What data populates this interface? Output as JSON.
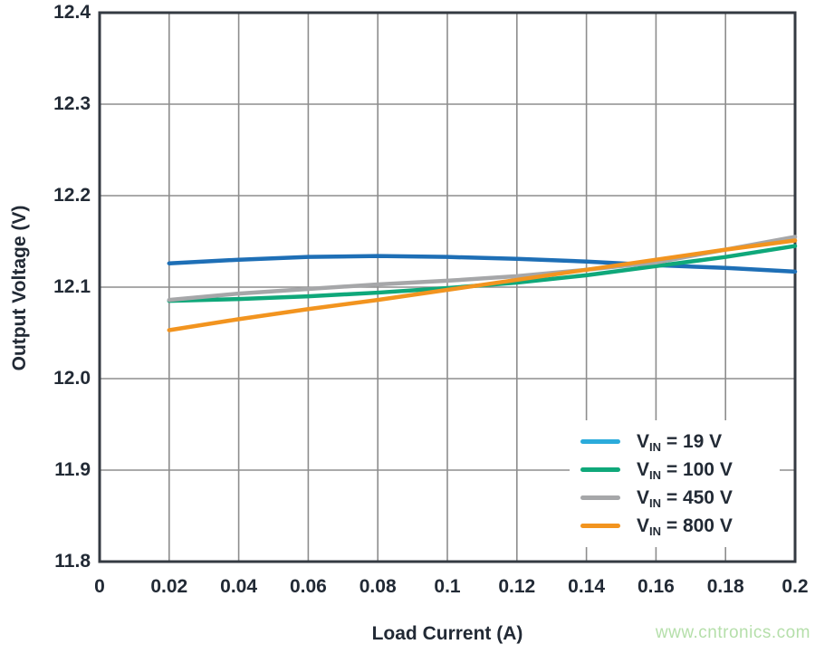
{
  "watermark": {
    "text": "www.cntronics.com",
    "color": "#b5dfaa"
  },
  "colors": {
    "text": "#222a35",
    "grid": "#8d8d8d",
    "frame": "#343a42",
    "background": "#ffffff"
  },
  "chart_data": {
    "type": "line",
    "title": "",
    "xlabel": "Load Current (A)",
    "ylabel": "Output Voltage (V)",
    "xlim": [
      0,
      0.2
    ],
    "ylim": [
      11.8,
      12.4
    ],
    "grid": true,
    "legend_position": "lower right",
    "x_ticks": {
      "values": [
        0,
        0.02,
        0.04,
        0.06,
        0.08,
        0.1,
        0.12,
        0.14,
        0.16,
        0.18,
        0.2
      ],
      "labels": [
        "0",
        "0.02",
        "0.04",
        "0.06",
        "0.08",
        "0.1",
        "0.12",
        "0.14",
        "0.16",
        "0.18",
        "0.2"
      ]
    },
    "y_ticks": {
      "values": [
        12.4,
        12.3,
        12.2,
        12.1,
        12.0,
        11.9,
        11.8
      ],
      "labels": [
        "12.4",
        "12.3",
        "12.2",
        "12.1",
        "12.0",
        "11.9",
        "11.8"
      ]
    },
    "x": [
      0.02,
      0.04,
      0.06,
      0.08,
      0.1,
      0.12,
      0.14,
      0.16,
      0.18,
      0.2
    ],
    "series": [
      {
        "name": "VIN = 19 V",
        "legend": {
          "main": "V",
          "sub": "IN",
          "rest": " = 19 V"
        },
        "line_color": "#1e6fb6",
        "swatch_color": "#2babdb",
        "values": [
          12.126,
          12.13,
          12.133,
          12.134,
          12.133,
          12.131,
          12.128,
          12.124,
          12.121,
          12.117
        ]
      },
      {
        "name": "VIN = 100 V",
        "legend": {
          "main": "V",
          "sub": "IN",
          "rest": " = 100 V"
        },
        "line_color": "#0fa87a",
        "swatch_color": "#0fa87a",
        "values": [
          12.085,
          12.087,
          12.09,
          12.094,
          12.099,
          12.105,
          12.113,
          12.123,
          12.133,
          12.145
        ]
      },
      {
        "name": "VIN = 450 V",
        "legend": {
          "main": "V",
          "sub": "IN",
          "rest": " = 450 V"
        },
        "line_color": "#a6a7a9",
        "swatch_color": "#a6a7a9",
        "values": [
          12.086,
          12.093,
          12.098,
          12.103,
          12.107,
          12.112,
          12.119,
          12.127,
          12.141,
          12.155
        ]
      },
      {
        "name": "VIN = 800 V",
        "legend": {
          "main": "V",
          "sub": "IN",
          "rest": " = 800 V"
        },
        "line_color": "#f2941f",
        "swatch_color": "#f2941f",
        "values": [
          12.053,
          12.065,
          12.076,
          12.086,
          12.097,
          12.108,
          12.119,
          12.13,
          12.141,
          12.151
        ]
      }
    ]
  }
}
